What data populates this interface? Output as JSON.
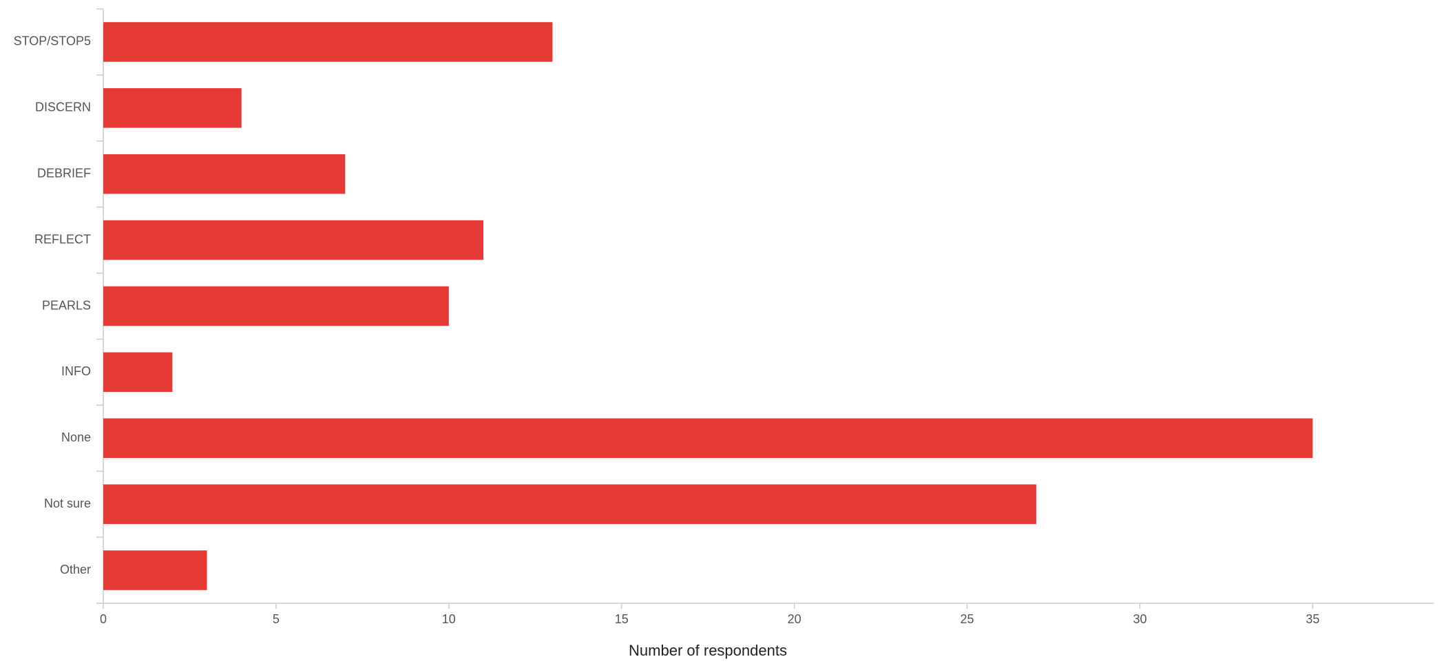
{
  "chart_data": {
    "type": "hbar",
    "x_label": "Number of respondents",
    "categories": [
      "STOP/STOP5",
      "DISCERN",
      "DEBRIEF",
      "REFLECT",
      "PEARLS",
      "INFO",
      "None",
      "Not sure",
      "Other"
    ],
    "values": [
      13,
      4,
      7,
      11,
      10,
      2,
      35,
      27,
      3
    ],
    "color": "#e53935",
    "xlim": [
      0,
      38.5
    ],
    "xticks": [
      0,
      5,
      10,
      15,
      20,
      25,
      30,
      35
    ],
    "grid": false
  }
}
